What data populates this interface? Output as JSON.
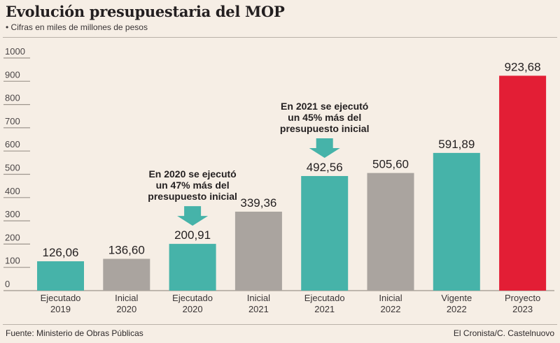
{
  "header": {
    "title": "Evolución presupuestaria del MOP",
    "subtitle": "• Cifras en miles de millones de pesos"
  },
  "footer": {
    "source": "Fuente: Ministerio de Obras Públicas",
    "credit": "El Cronista/C. Castelnuovo"
  },
  "colors": {
    "ejecutado": "#46b3a9",
    "inicial": "#aaa49f",
    "vigente": "#46b3a9",
    "proyecto": "#e31e35",
    "arrow": "#46b3a9",
    "axis": "#9e968e"
  },
  "chart_data": {
    "type": "bar",
    "title": "Evolución presupuestaria del MOP",
    "subtitle": "Cifras en miles de millones de pesos",
    "xlabel": "",
    "ylabel": "",
    "ylim": [
      0,
      1000
    ],
    "yticks": [
      0,
      100,
      200,
      300,
      400,
      500,
      600,
      700,
      800,
      900,
      1000
    ],
    "grid": false,
    "legend": "none",
    "categories": [
      [
        "Ejecutado",
        "2019"
      ],
      [
        "Inicial",
        "2020"
      ],
      [
        "Ejecutado",
        "2020"
      ],
      [
        "Inicial",
        "2021"
      ],
      [
        "Ejecutado",
        "2021"
      ],
      [
        "Inicial",
        "2022"
      ],
      [
        "Vigente",
        "2022"
      ],
      [
        "Proyecto",
        "2023"
      ]
    ],
    "values": [
      126.06,
      136.6,
      200.91,
      339.36,
      492.56,
      505.6,
      591.89,
      923.68
    ],
    "value_labels": [
      "126,06",
      "136,60",
      "200,91",
      "339,36",
      "492,56",
      "505,60",
      "591,89",
      "923,68"
    ],
    "bar_kinds": [
      "ejecutado",
      "inicial",
      "ejecutado",
      "inicial",
      "ejecutado",
      "inicial",
      "vigente",
      "proyecto"
    ],
    "annotations": [
      {
        "bar_index": 2,
        "lines": [
          "En 2020 se ejecutó",
          "un 47% más del",
          "presupuesto inicial"
        ]
      },
      {
        "bar_index": 4,
        "lines": [
          "En 2021 se ejecutó",
          "un 45% más del",
          "presupuesto inicial"
        ]
      }
    ]
  }
}
